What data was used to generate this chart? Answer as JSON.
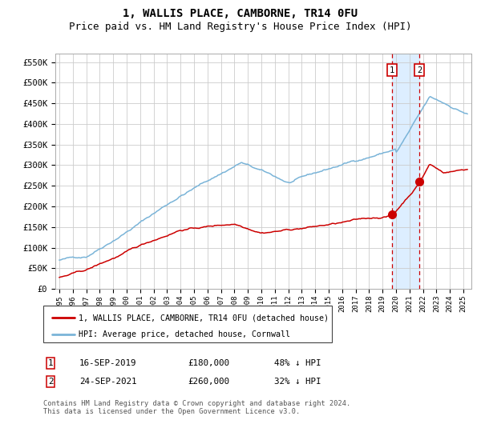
{
  "title": "1, WALLIS PLACE, CAMBORNE, TR14 0FU",
  "subtitle": "Price paid vs. HM Land Registry's House Price Index (HPI)",
  "ylim": [
    0,
    570000
  ],
  "yticks": [
    0,
    50000,
    100000,
    150000,
    200000,
    250000,
    300000,
    350000,
    400000,
    450000,
    500000,
    550000
  ],
  "ytick_labels": [
    "£0",
    "£50K",
    "£100K",
    "£150K",
    "£200K",
    "£250K",
    "£300K",
    "£350K",
    "£400K",
    "£450K",
    "£500K",
    "£550K"
  ],
  "hpi_color": "#7ab4d8",
  "price_color": "#cc0000",
  "marker_color": "#cc0000",
  "vline_color": "#cc0000",
  "shade_color": "#ddeeff",
  "point1_date_num": 2019.71,
  "point1_price": 180000,
  "point2_date_num": 2021.73,
  "point2_price": 260000,
  "legend_label1": "1, WALLIS PLACE, CAMBORNE, TR14 0FU (detached house)",
  "legend_label2": "HPI: Average price, detached house, Cornwall",
  "table_row1": [
    "1",
    "16-SEP-2019",
    "£180,000",
    "48% ↓ HPI"
  ],
  "table_row2": [
    "2",
    "24-SEP-2021",
    "£260,000",
    "32% ↓ HPI"
  ],
  "footnote": "Contains HM Land Registry data © Crown copyright and database right 2024.\nThis data is licensed under the Open Government Licence v3.0.",
  "title_fontsize": 10,
  "subtitle_fontsize": 9,
  "bg_color": "#ffffff",
  "grid_color": "#cccccc",
  "xlim_left": 1994.7,
  "xlim_right": 2025.6
}
